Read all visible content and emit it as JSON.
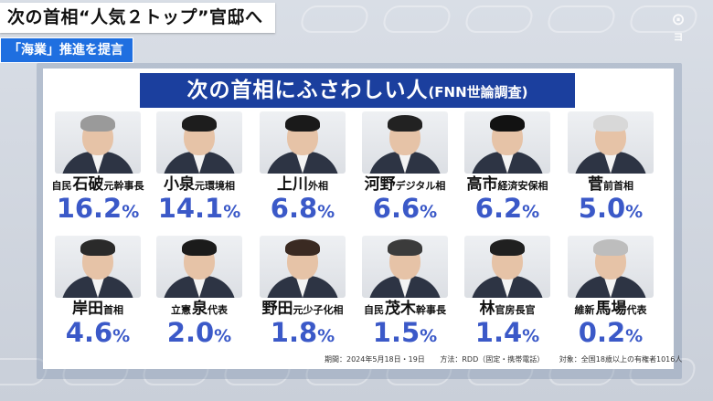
{
  "captions": {
    "headline": "次の首相“人気２トップ”官邸へ",
    "sub": "「海業」推進を提言"
  },
  "channel_logo": "ヨ",
  "panel": {
    "title_main": "次の首相にふさわしい人",
    "title_paren": "(FNN世論調査)"
  },
  "candidates": [
    {
      "party": "自民",
      "name": "石破",
      "role": "元幹事長",
      "value": "16.2",
      "unit": "%",
      "hair": "#9a9a9a"
    },
    {
      "party": "",
      "name": "小泉",
      "role": "元環境相",
      "value": "14.1",
      "unit": "%",
      "hair": "#1d1d1d"
    },
    {
      "party": "",
      "name": "上川",
      "role": "外相",
      "value": "6.8",
      "unit": "%",
      "hair": "#1a1a1a"
    },
    {
      "party": "",
      "name": "河野",
      "role": "デジタル相",
      "value": "6.6",
      "unit": "%",
      "hair": "#222222"
    },
    {
      "party": "",
      "name": "高市",
      "role": "経済安保相",
      "value": "6.2",
      "unit": "%",
      "hair": "#121212"
    },
    {
      "party": "",
      "name": "菅",
      "role": "前首相",
      "value": "5.0",
      "unit": "%",
      "hair": "#d8d8d8"
    },
    {
      "party": "",
      "name": "岸田",
      "role": "首相",
      "value": "4.6",
      "unit": "%",
      "hair": "#2a2a2a"
    },
    {
      "party": "立憲",
      "name": "泉",
      "role": "代表",
      "value": "2.0",
      "unit": "%",
      "hair": "#1b1b1b"
    },
    {
      "party": "",
      "name": "野田",
      "role": "元少子化相",
      "value": "1.8",
      "unit": "%",
      "hair": "#3a2a22"
    },
    {
      "party": "自民",
      "name": "茂木",
      "role": "幹事長",
      "value": "1.5",
      "unit": "%",
      "hair": "#3b3b3b"
    },
    {
      "party": "",
      "name": "林",
      "role": "官房長官",
      "value": "1.4",
      "unit": "%",
      "hair": "#202020"
    },
    {
      "party": "維新",
      "name": "馬場",
      "role": "代表",
      "value": "0.2",
      "unit": "%",
      "hair": "#bdbdbd"
    }
  ],
  "footnote": {
    "period": "期間：2024年5月18日・19日",
    "method": "方法：RDD（固定・携帯電話）",
    "target": "対象：全国18歳以上の有権者1016人"
  }
}
